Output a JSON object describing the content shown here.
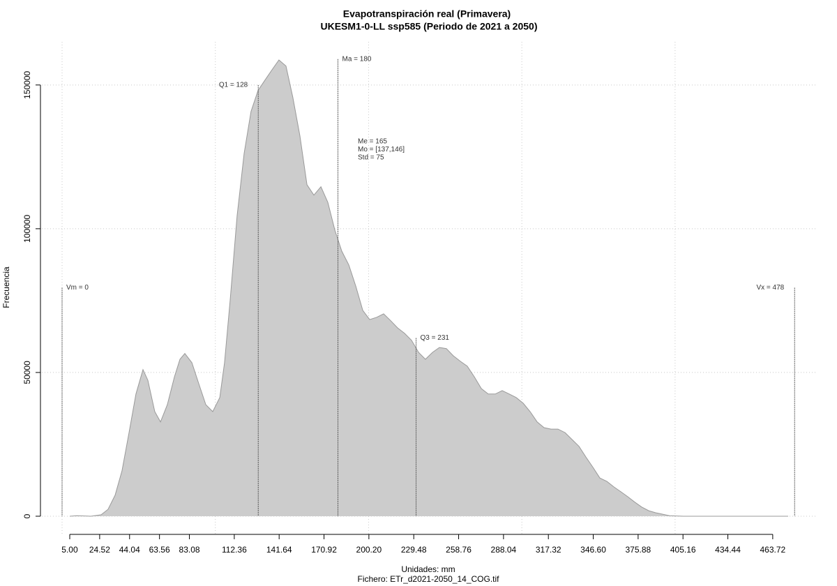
{
  "chart_data": {
    "type": "area",
    "title": "Evapotranspiración real (Primavera)",
    "subtitle": "UKESM1-0-LL ssp585 (Periodo de 2021 a 2050)",
    "x_label": "Unidades: mm",
    "caption": "Fichero: ETr_d2021-2050_14_COG.tif",
    "y_label": "Frecuencia",
    "color": "#cccccc",
    "line_color": "#999999",
    "grid": true,
    "xlim": [
      -13.2,
      492
    ],
    "ylim": [
      -6800,
      165000
    ],
    "xticks": [
      {
        "value": 5,
        "label": "5.00"
      },
      {
        "value": 24.52,
        "label": "24.52"
      },
      {
        "value": 44.04,
        "label": "44.04"
      },
      {
        "value": 63.56,
        "label": "63.56"
      },
      {
        "value": 83.08,
        "label": "83.08"
      },
      {
        "value": 112.36,
        "label": "112.36"
      },
      {
        "value": 141.64,
        "label": "141.64"
      },
      {
        "value": 170.92,
        "label": "170.92"
      },
      {
        "value": 200.2,
        "label": "200.20"
      },
      {
        "value": 229.48,
        "label": "229.48"
      },
      {
        "value": 258.76,
        "label": "258.76"
      },
      {
        "value": 288.04,
        "label": "288.04"
      },
      {
        "value": 317.32,
        "label": "317.32"
      },
      {
        "value": 346.6,
        "label": "346.60"
      },
      {
        "value": 375.88,
        "label": "375.88"
      },
      {
        "value": 405.16,
        "label": "405.16"
      },
      {
        "value": 434.44,
        "label": "434.44"
      },
      {
        "value": 463.72,
        "label": "463.72"
      }
    ],
    "xgrid": [
      0,
      100,
      200,
      300,
      400
    ],
    "yticks": [
      0,
      50000,
      100000,
      150000
    ],
    "x": [
      5.0,
      9.6,
      18.7,
      25.5,
      30.0,
      34.6,
      39.1,
      43.7,
      48.2,
      52.8,
      56.0,
      60.5,
      64.2,
      68.7,
      73.3,
      76.9,
      80.1,
      84.7,
      89.2,
      93.8,
      98.3,
      102.9,
      106.0,
      109.7,
      114.2,
      118.8,
      123.3,
      127.9,
      132.4,
      137.0,
      141.5,
      146.1,
      150.6,
      155.2,
      159.8,
      164.3,
      168.9,
      173.4,
      178.0,
      182.5,
      187.1,
      191.6,
      196.2,
      200.7,
      205.3,
      209.8,
      214.4,
      218.9,
      223.5,
      228.0,
      232.6,
      237.1,
      241.7,
      246.2,
      250.8,
      255.3,
      259.9,
      264.4,
      269.0,
      273.6,
      278.1,
      282.7,
      287.2,
      291.8,
      296.3,
      300.9,
      305.4,
      310.0,
      314.5,
      319.1,
      323.6,
      328.2,
      332.7,
      337.3,
      341.8,
      346.4,
      350.9,
      355.5,
      360.0,
      364.6,
      369.1,
      373.7,
      378.2,
      382.8,
      387.3,
      391.9,
      396.4,
      405.5,
      473.8
    ],
    "y": [
      0,
      200,
      0,
      500,
      2400,
      7300,
      15800,
      29100,
      42500,
      51000,
      47300,
      36400,
      32800,
      38800,
      48500,
      54600,
      56600,
      53400,
      46100,
      38800,
      36400,
      41300,
      53400,
      75200,
      104400,
      126200,
      140800,
      148100,
      151700,
      155300,
      158700,
      156600,
      145600,
      132300,
      115300,
      111700,
      114600,
      109200,
      99500,
      92200,
      87400,
      80100,
      71600,
      68400,
      69200,
      70400,
      68000,
      65500,
      63600,
      61200,
      57000,
      54600,
      57000,
      58700,
      58300,
      55800,
      53900,
      52200,
      48500,
      44400,
      42500,
      42500,
      43700,
      42500,
      41300,
      39300,
      36400,
      32800,
      30800,
      30300,
      30300,
      29100,
      26700,
      24300,
      20600,
      17000,
      13300,
      12100,
      10200,
      8500,
      6800,
      4900,
      3200,
      1900,
      1200,
      700,
      200,
      0,
      0
    ],
    "markers": [
      {
        "label": "Vm = 0",
        "x": 0,
        "y": 79500,
        "side": "right"
      },
      {
        "label": "Q1 = 128",
        "x": 128,
        "y": 150000,
        "side": "left"
      },
      {
        "label": "Ma = 180",
        "x": 180,
        "y": 159000,
        "side": "right"
      },
      {
        "label": "Q3 = 231",
        "x": 231,
        "y": 62000,
        "side": "right"
      },
      {
        "label": "Vx = 478",
        "x": 478,
        "y": 79500,
        "side": "left"
      }
    ],
    "stats": [
      "Me = 165",
      "Mo = [137,146]",
      "Std = 75"
    ]
  }
}
